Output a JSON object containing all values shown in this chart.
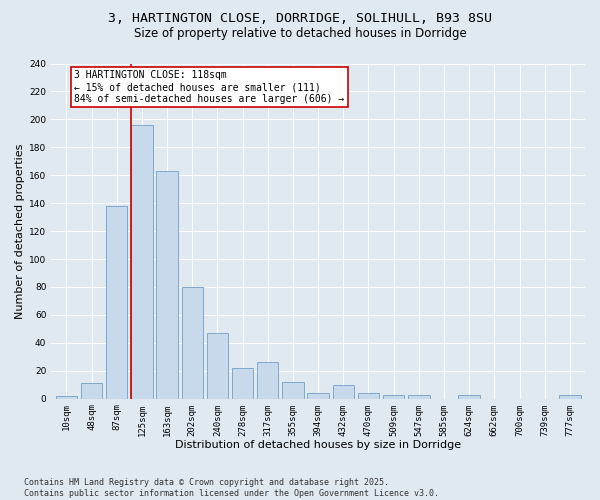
{
  "title": "3, HARTINGTON CLOSE, DORRIDGE, SOLIHULL, B93 8SU",
  "subtitle": "Size of property relative to detached houses in Dorridge",
  "xlabel": "Distribution of detached houses by size in Dorridge",
  "ylabel": "Number of detached properties",
  "categories": [
    "10sqm",
    "48sqm",
    "87sqm",
    "125sqm",
    "163sqm",
    "202sqm",
    "240sqm",
    "278sqm",
    "317sqm",
    "355sqm",
    "394sqm",
    "432sqm",
    "470sqm",
    "509sqm",
    "547sqm",
    "585sqm",
    "624sqm",
    "662sqm",
    "700sqm",
    "739sqm",
    "777sqm"
  ],
  "values": [
    2,
    11,
    138,
    196,
    163,
    80,
    47,
    22,
    26,
    12,
    4,
    10,
    4,
    3,
    3,
    0,
    3,
    0,
    0,
    0,
    3
  ],
  "bar_color": "#c9d9ec",
  "bar_edge_color": "#7fa8cc",
  "vline_x_index": 3,
  "vline_color": "#cc0000",
  "annotation_text": "3 HARTINGTON CLOSE: 118sqm\n← 15% of detached houses are smaller (111)\n84% of semi-detached houses are larger (606) →",
  "annotation_box_color": "#ffffff",
  "annotation_box_edge": "#cc0000",
  "ylim": [
    0,
    240
  ],
  "yticks": [
    0,
    20,
    40,
    60,
    80,
    100,
    120,
    140,
    160,
    180,
    200,
    220,
    240
  ],
  "background_color": "#e0e8f0",
  "plot_background": "#e0e8f0",
  "footer": "Contains HM Land Registry data © Crown copyright and database right 2025.\nContains public sector information licensed under the Open Government Licence v3.0.",
  "title_fontsize": 9.5,
  "subtitle_fontsize": 8.5,
  "axis_label_fontsize": 8,
  "tick_fontsize": 6.5,
  "footer_fontsize": 6,
  "annotation_fontsize": 7
}
